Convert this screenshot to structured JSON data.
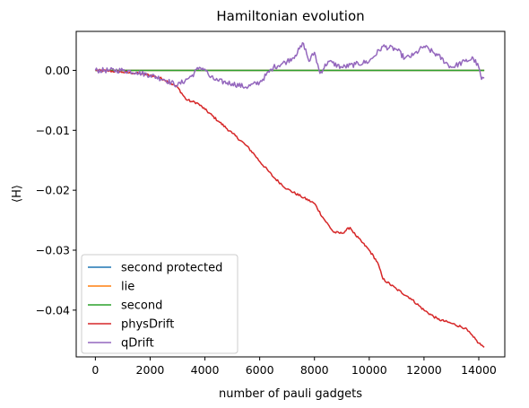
{
  "chart_data": {
    "type": "line",
    "title": "Hamiltonian evolution",
    "xlabel": "number of pauli gadgets",
    "ylabel": "⟨H⟩",
    "xlim": [
      -700,
      14950
    ],
    "ylim": [
      -0.0478,
      0.0065
    ],
    "xticks": [
      0,
      2000,
      4000,
      6000,
      8000,
      10000,
      12000,
      14000
    ],
    "xtick_labels": [
      "0",
      "2000",
      "4000",
      "6000",
      "8000",
      "10000",
      "12000",
      "14000"
    ],
    "yticks": [
      0.0,
      -0.01,
      -0.02,
      -0.03,
      -0.04
    ],
    "ytick_labels": [
      "0.00",
      "−0.01",
      "−0.02",
      "−0.03",
      "−0.04"
    ],
    "grid": false,
    "legend_position": "lower-left",
    "series": [
      {
        "name": "second protected",
        "color": "#1f77b4",
        "x": [
          0,
          14200
        ],
        "y": [
          0.0,
          0.0
        ]
      },
      {
        "name": "lie",
        "color": "#ff7f0e",
        "x": [
          0,
          14200
        ],
        "y": [
          0.0,
          0.0
        ]
      },
      {
        "name": "second",
        "color": "#2ca02c",
        "x": [
          0,
          14200
        ],
        "y": [
          0.0,
          0.0
        ]
      },
      {
        "name": "physDrift",
        "color": "#d62728",
        "x": [
          0,
          500,
          1000,
          1500,
          2000,
          2500,
          3000,
          3300,
          3500,
          3700,
          4000,
          4500,
          5000,
          5500,
          5800,
          6000,
          6300,
          6500,
          7000,
          7500,
          8000,
          8300,
          8700,
          9000,
          9300,
          9500,
          10000,
          10300,
          10500,
          11000,
          11500,
          12000,
          12500,
          13000,
          13500,
          13800,
          14000,
          14200
        ],
        "y": [
          0.0,
          -0.0001,
          -0.0003,
          -0.0005,
          -0.0008,
          -0.0015,
          -0.0028,
          -0.0048,
          -0.0052,
          -0.0054,
          -0.0065,
          -0.0085,
          -0.0105,
          -0.0125,
          -0.014,
          -0.0152,
          -0.0167,
          -0.0178,
          -0.0198,
          -0.021,
          -0.0222,
          -0.0245,
          -0.027,
          -0.0272,
          -0.0262,
          -0.0275,
          -0.03,
          -0.032,
          -0.0348,
          -0.0365,
          -0.038,
          -0.04,
          -0.0415,
          -0.0422,
          -0.043,
          -0.0445,
          -0.0455,
          -0.0462
        ]
      },
      {
        "name": "qDrift",
        "color": "#9467bd",
        "x": [
          0,
          500,
          1000,
          1500,
          2000,
          2500,
          3000,
          3500,
          3800,
          4000,
          4200,
          4500,
          5000,
          5500,
          6000,
          6500,
          7000,
          7300,
          7600,
          7800,
          8000,
          8200,
          8500,
          9000,
          9500,
          10000,
          10500,
          11000,
          11300,
          11600,
          12000,
          12500,
          13000,
          13500,
          13800,
          14000,
          14100,
          14200
        ],
        "y": [
          0.0,
          0.0,
          0.0,
          -0.0003,
          -0.0008,
          -0.0015,
          -0.0025,
          -0.001,
          0.0005,
          0.0002,
          -0.0012,
          -0.0018,
          -0.0022,
          -0.0028,
          -0.002,
          0.0005,
          0.0015,
          0.0025,
          0.0045,
          0.0015,
          0.003,
          -0.0005,
          0.0015,
          0.0005,
          0.001,
          0.0015,
          0.004,
          0.0035,
          0.002,
          0.0025,
          0.004,
          0.0025,
          0.0005,
          0.0015,
          0.002,
          0.0005,
          -0.0015,
          -0.0012
        ]
      }
    ]
  }
}
